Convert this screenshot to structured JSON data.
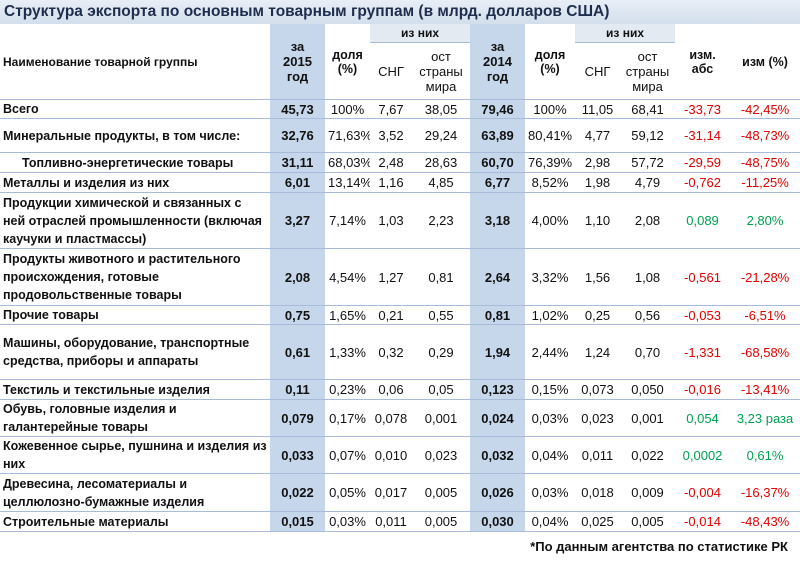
{
  "header": {
    "title": "Структура экспорта по основным товарным группам (в млрд. долларов США)",
    "footnote": "*По данным агентства по статистике РК"
  },
  "table": {
    "columns": {
      "name": "Наименование товарной группы",
      "y2015": "за 2015 год",
      "share2015": "доля (%)",
      "of_them_2015": "из них",
      "cis2015": "СНГ",
      "rest2015": "ост страны мира",
      "y2014": "за 2014 год",
      "share2014": "доля (%)",
      "of_them_2014": "из них",
      "cis2014": "СНГ",
      "rest2014": "ост страны мира",
      "change_abs": "изм. абс",
      "change_pct": "изм (%)"
    },
    "rows": [
      [
        "Всего",
        "45,73",
        "100%",
        "7,67",
        "38,05",
        "79,46",
        "100%",
        "11,05",
        "68,41",
        "-33,73",
        "-42,45%"
      ],
      [
        "Минеральные продукты, в том числе:",
        "32,76",
        "71,63%",
        "3,52",
        "29,24",
        "63,89",
        "80,41%",
        "4,77",
        "59,12",
        "-31,14",
        "-48,73%"
      ],
      [
        "Топливно-энергетические товары",
        "31,11",
        "68,03%",
        "2,48",
        "28,63",
        "60,70",
        "76,39%",
        "2,98",
        "57,72",
        "-29,59",
        "-48,75%"
      ],
      [
        "Металлы и изделия из них",
        "6,01",
        "13,14%",
        "1,16",
        "4,85",
        "6,77",
        "8,52%",
        "1,98",
        "4,79",
        "-0,762",
        "-11,25%"
      ],
      [
        "Продукции химической и связанных с ней отраслей промышленности (включая каучуки и пластмассы)",
        "3,27",
        "7,14%",
        "1,03",
        "2,23",
        "3,18",
        "4,00%",
        "1,10",
        "2,08",
        "0,089",
        "2,80%"
      ],
      [
        "Продукты животного и растительного происхождения, готовые продовольственные товары",
        "2,08",
        "4,54%",
        "1,27",
        "0,81",
        "2,64",
        "3,32%",
        "1,56",
        "1,08",
        "-0,561",
        "-21,28%"
      ],
      [
        "Прочие товары",
        "0,75",
        "1,65%",
        "0,21",
        "0,55",
        "0,81",
        "1,02%",
        "0,25",
        "0,56",
        "-0,053",
        "-6,51%"
      ],
      [
        "Машины, оборудование, транспортные средства, приборы и аппараты",
        "0,61",
        "1,33%",
        "0,32",
        "0,29",
        "1,94",
        "2,44%",
        "1,24",
        "0,70",
        "-1,331",
        "-68,58%"
      ],
      [
        "Текстиль и текстильные изделия",
        "0,11",
        "0,23%",
        "0,06",
        "0,05",
        "0,123",
        "0,15%",
        "0,073",
        "0,050",
        "-0,016",
        "-13,41%"
      ],
      [
        "Обувь, головные изделия и галантерейные товары",
        "0,079",
        "0,17%",
        "0,078",
        "0,001",
        "0,024",
        "0,03%",
        "0,023",
        "0,001",
        "0,054",
        "3,23 раза"
      ],
      [
        "Кожевенное сырье, пушнина и изделия из них",
        "0,033",
        "0,07%",
        "0,010",
        "0,023",
        "0,032",
        "0,04%",
        "0,011",
        "0,022",
        "0,0002",
        "0,61%"
      ],
      [
        "Древесина, лесоматериалы и целлюлозно-бумажные изделия",
        "0,022",
        "0,05%",
        "0,017",
        "0,005",
        "0,026",
        "0,03%",
        "0,018",
        "0,009",
        "-0,004",
        "-16,37%"
      ],
      [
        "Строительные материалы",
        "0,015",
        "0,03%",
        "0,011",
        "0,005",
        "0,030",
        "0,04%",
        "0,025",
        "0,005",
        "-0,014",
        "-48,43%"
      ]
    ]
  }
}
